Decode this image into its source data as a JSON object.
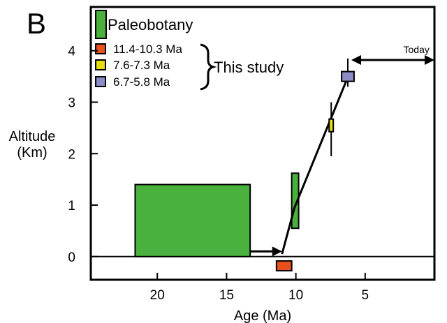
{
  "chart_data": {
    "type": "bar",
    "panel_label": "B",
    "xlabel": "Age (Ma)",
    "ylabel": [
      "Altitude",
      "(Km)"
    ],
    "x_reversed": true,
    "xlim": [
      24.8,
      0
    ],
    "ylim": [
      -0.45,
      4.85
    ],
    "x_ticks": [
      20,
      15,
      10,
      5
    ],
    "y_ticks": [
      0,
      1,
      2,
      3,
      4
    ],
    "colors": {
      "paleobotany": "#4ab03e",
      "c1": "#e8501e",
      "c2": "#e6dc12",
      "c3": "#8c8cc6"
    },
    "legend": {
      "paleobotany": "Paleobotany",
      "items": [
        {
          "label": "11.4-10.3 Ma",
          "color": "#e8501e"
        },
        {
          "label": "7.6-7.3 Ma",
          "color": "#e6dc12"
        },
        {
          "label": "6.7-5.8 Ma",
          "color": "#8c8cc6"
        }
      ],
      "group_label": "This study"
    },
    "paleobotany_bars": [
      {
        "x_from": 21.6,
        "x_to": 13.3,
        "y_from": 0,
        "y_to": 1.4
      },
      {
        "x_from": 10.3,
        "x_to": 9.8,
        "y_from": 0.55,
        "y_to": 1.62
      }
    ],
    "study_points": [
      {
        "age_from": 11.4,
        "age_to": 10.3,
        "altitude": -0.18,
        "color": "#e8501e"
      },
      {
        "age_from": 7.6,
        "age_to": 7.3,
        "altitude": 2.55,
        "err_low": 1.95,
        "err_high": 3.0,
        "color": "#e6dc12"
      },
      {
        "age_from": 6.7,
        "age_to": 5.8,
        "altitude": 3.5,
        "err_low": 3.3,
        "err_high": 3.85,
        "color": "#8c8cc6"
      }
    ],
    "trend_line": [
      [
        11.0,
        0.05
      ],
      [
        10.1,
        0.95
      ],
      [
        6.2,
        3.52
      ]
    ],
    "arrow_to_trend": {
      "from": [
        13.3,
        0.1
      ],
      "to": [
        11.0,
        0.1
      ]
    },
    "today_arrow": {
      "from": [
        6.0,
        3.82
      ],
      "to": [
        0,
        3.82
      ],
      "label": "Today"
    }
  }
}
